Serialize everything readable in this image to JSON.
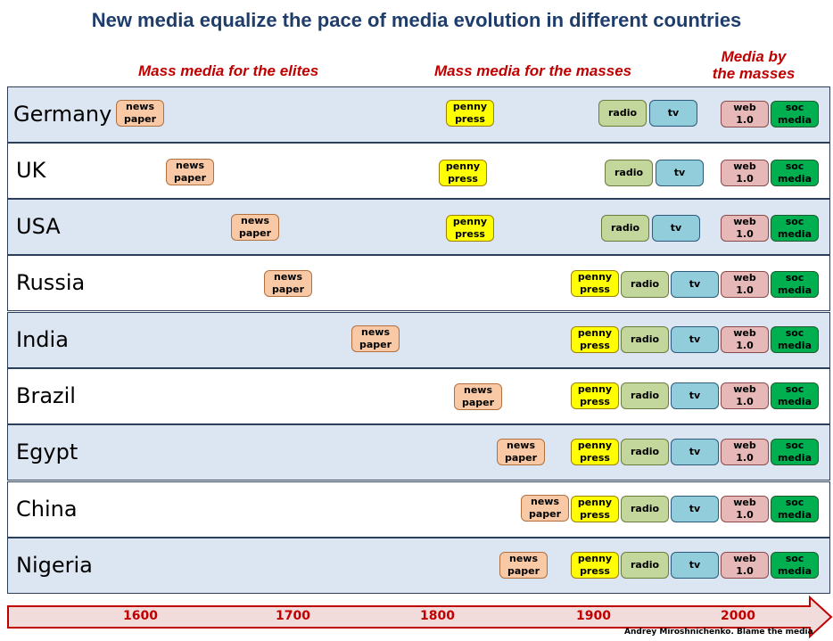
{
  "title": "New media equalize the pace of media evolution in different countries",
  "eras": [
    "Mass media for the elites",
    "Mass media for the masses",
    "Media by\nthe masses"
  ],
  "countries": [
    "Germany",
    "UK",
    "USA",
    "Russia",
    "India",
    "Brazil",
    "Egypt",
    "China",
    "Nigeria"
  ],
  "media_labels": {
    "news": "news\npaper",
    "penny": "penny\npress",
    "radio": "radio",
    "tv": "tv",
    "web": "web\n1.0",
    "soc": "soc\nmedia"
  },
  "years": [
    "1600",
    "1700",
    "1800",
    "1900",
    "2000"
  ],
  "credit": "Andrey Miroshnichenko. Blame the media",
  "colors": {
    "title": "#1f3d6b",
    "era": "#c00000",
    "news": "#f9c9a6",
    "penny": "#ffff00",
    "radio": "#c3d69b",
    "tv": "#92cddc",
    "web": "#e6b9b8",
    "soc": "#00b050"
  }
}
